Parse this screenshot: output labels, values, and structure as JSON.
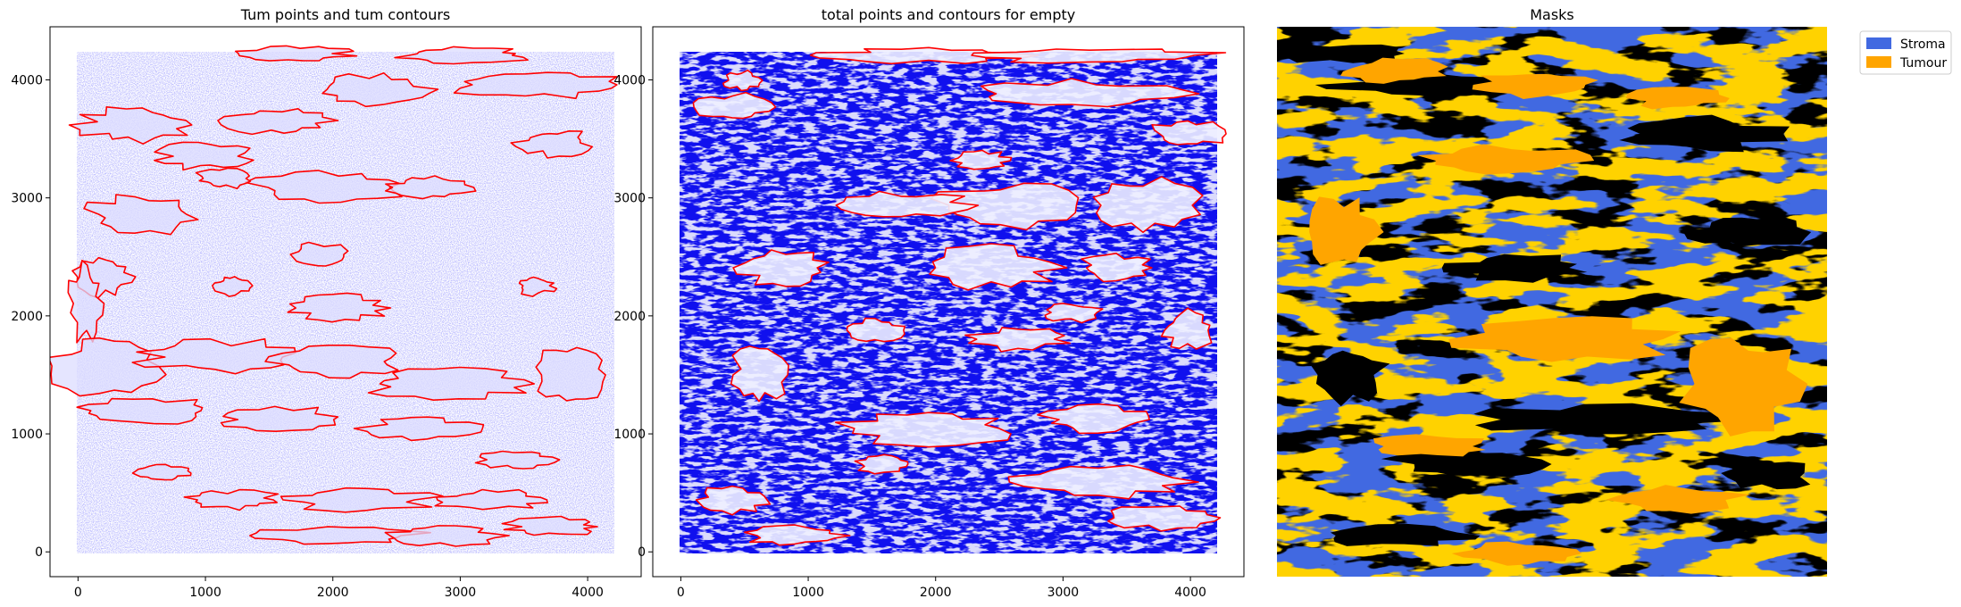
{
  "chart_data": [
    {
      "type": "scatter",
      "title": "Tum points and tum contours",
      "xlabel": "",
      "ylabel": "",
      "xlim": [
        -220,
        4420
      ],
      "ylim": [
        -210,
        4450
      ],
      "x_ticks": [
        0,
        1000,
        2000,
        3000,
        4000
      ],
      "y_ticks": [
        0,
        1000,
        2000,
        3000,
        4000
      ],
      "colors": {
        "points": "#0000ff",
        "contours": "#ff0000"
      },
      "grid": false
    },
    {
      "type": "scatter",
      "title": "total points and contours for empty",
      "xlabel": "",
      "ylabel": "",
      "xlim": [
        -220,
        4420
      ],
      "ylim": [
        -210,
        4450
      ],
      "x_ticks": [
        0,
        1000,
        2000,
        3000,
        4000
      ],
      "y_ticks": [
        0,
        1000,
        2000,
        3000,
        4000
      ],
      "colors": {
        "points": "#0000ff",
        "contours": "#ff0000"
      },
      "grid": false
    },
    {
      "type": "heatmap",
      "title": "Masks",
      "legend": [
        {
          "label": "Stroma",
          "color": "#4169e1"
        },
        {
          "label": "Tumour",
          "color": "#ffa500"
        }
      ],
      "background_color": "#000000",
      "legend_position": "upper-right-outside"
    }
  ]
}
